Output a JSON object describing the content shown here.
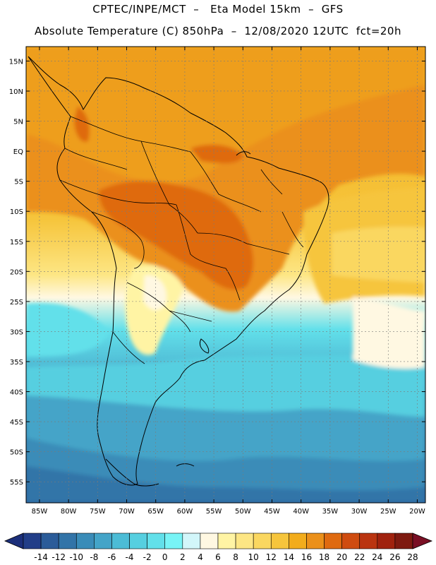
{
  "title": {
    "line1": "CPTEC/INPE/MCT  –   Eta Model 15km  –  GFS",
    "line2": "Absolute Temperature (C) 850hPa  –  12/08/2020 12UTC  fct=20h"
  },
  "latitudes": [
    {
      "label": "15N",
      "value": 15
    },
    {
      "label": "10N",
      "value": 10
    },
    {
      "label": "5N",
      "value": 5
    },
    {
      "label": "EQ",
      "value": 0
    },
    {
      "label": "5S",
      "value": -5
    },
    {
      "label": "10S",
      "value": -10
    },
    {
      "label": "15S",
      "value": -15
    },
    {
      "label": "20S",
      "value": -20
    },
    {
      "label": "25S",
      "value": -25
    },
    {
      "label": "30S",
      "value": -30
    },
    {
      "label": "35S",
      "value": -35
    },
    {
      "label": "40S",
      "value": -40
    },
    {
      "label": "45S",
      "value": -45
    },
    {
      "label": "50S",
      "value": -50
    },
    {
      "label": "55S",
      "value": -55
    }
  ],
  "longitudes": [
    {
      "label": "85W",
      "value": -85
    },
    {
      "label": "80W",
      "value": -80
    },
    {
      "label": "75W",
      "value": -75
    },
    {
      "label": "70W",
      "value": -70
    },
    {
      "label": "65W",
      "value": -65
    },
    {
      "label": "60W",
      "value": -60
    },
    {
      "label": "55W",
      "value": -55
    },
    {
      "label": "50W",
      "value": -50
    },
    {
      "label": "45W",
      "value": -45
    },
    {
      "label": "40W",
      "value": -40
    },
    {
      "label": "35W",
      "value": -35
    },
    {
      "label": "30W",
      "value": -30
    },
    {
      "label": "25W",
      "value": -25
    },
    {
      "label": "20W",
      "value": -20
    }
  ],
  "colorbar": {
    "labels": [
      "-14",
      "-12",
      "-10",
      "-8",
      "-6",
      "-4",
      "-2",
      "0",
      "2",
      "4",
      "6",
      "8",
      "10",
      "12",
      "14",
      "16",
      "18",
      "20",
      "22",
      "24",
      "26",
      "28"
    ],
    "low_color": "#1c2f7a",
    "high_color": "#7a0f24",
    "colors": [
      "#223e88",
      "#2b5c99",
      "#3274a8",
      "#3a8cb8",
      "#44a4c8",
      "#4cbcd6",
      "#56cfe0",
      "#62e0ea",
      "#78f4f6",
      "#d2f6fa",
      "#fff8e2",
      "#fff4a4",
      "#fde684",
      "#fad760",
      "#f6c53c",
      "#f2ac1c",
      "#eb901a",
      "#df6a10",
      "#cf4c10",
      "#ba3410",
      "#a0220e",
      "#7e1a10"
    ]
  }
}
